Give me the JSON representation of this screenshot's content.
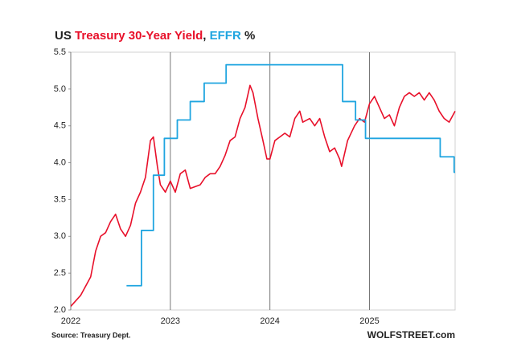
{
  "chart_data": {
    "type": "line",
    "title": {
      "prefix": "US",
      "separator": ",",
      "suffix": "%"
    },
    "source": "Source: Treasury Dept.",
    "brand": "WOLFSTREET.com",
    "xlim": [
      2022,
      2025.86
    ],
    "xticks": [
      2022,
      2023,
      2024,
      2025
    ],
    "ylim": [
      2.0,
      5.5
    ],
    "yticks": [
      {
        "value": 2.0,
        "label": "2.0"
      },
      {
        "value": 2.5,
        "label": "2.5"
      },
      {
        "value": 3.0,
        "label": "3.0"
      },
      {
        "value": 3.5,
        "label": "3.5"
      },
      {
        "value": 4.0,
        "label": "4.0"
      },
      {
        "value": 4.5,
        "label": "4.5"
      },
      {
        "value": 5.0,
        "label": "5.0"
      },
      {
        "value": 5.5,
        "label": "5.5"
      }
    ],
    "grid": "x",
    "series": [
      {
        "name": "Treasury 30-Year Yield",
        "color": "#e8102a",
        "step": false,
        "x": [
          2022.0,
          2022.1,
          2022.2,
          2022.25,
          2022.3,
          2022.35,
          2022.4,
          2022.45,
          2022.5,
          2022.55,
          2022.6,
          2022.65,
          2022.7,
          2022.75,
          2022.8,
          2022.83,
          2022.87,
          2022.9,
          2022.95,
          2023.0,
          2023.05,
          2023.1,
          2023.15,
          2023.2,
          2023.3,
          2023.35,
          2023.4,
          2023.45,
          2023.5,
          2023.55,
          2023.6,
          2023.65,
          2023.7,
          2023.75,
          2023.8,
          2023.83,
          2023.88,
          2023.93,
          2023.97,
          2024.0,
          2024.05,
          2024.1,
          2024.15,
          2024.2,
          2024.25,
          2024.3,
          2024.33,
          2024.4,
          2024.45,
          2024.5,
          2024.55,
          2024.6,
          2024.65,
          2024.7,
          2024.72,
          2024.78,
          2024.85,
          2024.9,
          2024.95,
          2025.0,
          2025.05,
          2025.1,
          2025.15,
          2025.2,
          2025.25,
          2025.3,
          2025.35,
          2025.4,
          2025.45,
          2025.5,
          2025.55,
          2025.6,
          2025.65,
          2025.7,
          2025.75,
          2025.8,
          2025.86
        ],
        "values": [
          2.05,
          2.2,
          2.45,
          2.8,
          3.0,
          3.05,
          3.2,
          3.3,
          3.1,
          3.0,
          3.15,
          3.45,
          3.6,
          3.8,
          4.3,
          4.35,
          3.95,
          3.7,
          3.6,
          3.75,
          3.6,
          3.85,
          3.9,
          3.65,
          3.7,
          3.8,
          3.85,
          3.85,
          3.95,
          4.1,
          4.3,
          4.35,
          4.6,
          4.75,
          5.05,
          4.95,
          4.6,
          4.3,
          4.05,
          4.05,
          4.3,
          4.35,
          4.4,
          4.35,
          4.6,
          4.7,
          4.55,
          4.6,
          4.5,
          4.6,
          4.35,
          4.15,
          4.2,
          4.05,
          3.95,
          4.3,
          4.5,
          4.6,
          4.55,
          4.8,
          4.9,
          4.75,
          4.6,
          4.65,
          4.5,
          4.75,
          4.9,
          4.95,
          4.9,
          4.95,
          4.85,
          4.95,
          4.85,
          4.7,
          4.6,
          4.55,
          4.7
        ]
      },
      {
        "name": "EFFR",
        "color": "#1fa5e0",
        "step": true,
        "x": [
          2022.56,
          2022.71,
          2022.83,
          2022.94,
          2023.07,
          2023.2,
          2023.34,
          2023.56,
          2024.73,
          2024.86,
          2024.96,
          2025.71,
          2025.85
        ],
        "values": [
          2.33,
          3.08,
          3.83,
          4.33,
          4.58,
          4.83,
          5.08,
          5.33,
          4.83,
          4.58,
          4.33,
          4.08,
          3.87
        ]
      }
    ]
  }
}
